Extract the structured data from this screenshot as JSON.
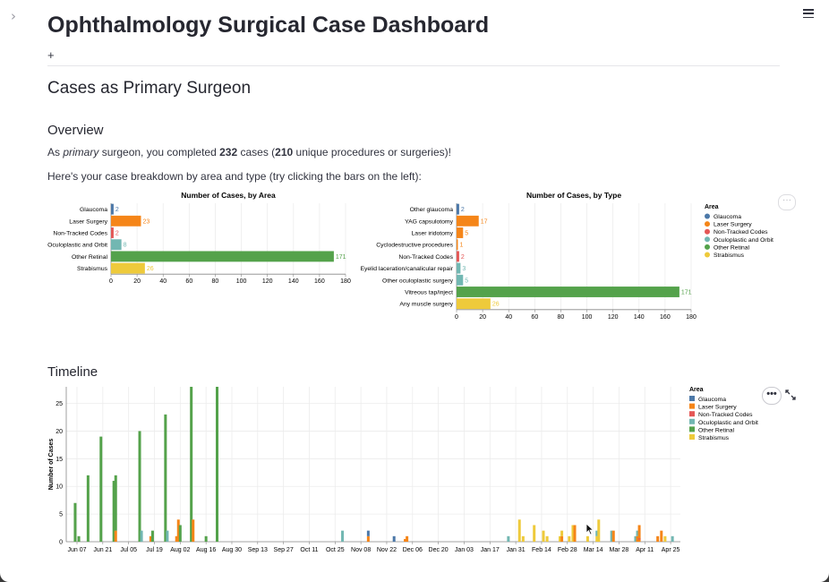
{
  "header": {
    "title": "Ophthalmology Surgical Case Dashboard",
    "add_tab_label": "+",
    "expand_icon": "chevron-right-icon",
    "menu_icon": "hamburger-menu-icon"
  },
  "section": {
    "title": "Cases as Primary Surgeon"
  },
  "overview": {
    "heading": "Overview",
    "summary": {
      "prefix": "As ",
      "emphasis": "primary",
      "mid1": " surgeon, you completed ",
      "cases": "232",
      "mid2": " cases (",
      "unique": "210",
      "suffix": " unique procedures or surgeries)!"
    },
    "hint": "Here's your case breakdown by area and type (try clicking the bars on the left):"
  },
  "colors": {
    "Glaucoma": "#4c78a8",
    "Laser Surgery": "#f58518",
    "Non-Tracked Codes": "#e45756",
    "Oculoplastic and Orbit": "#72b7b2",
    "Other Retinal": "#54a24b",
    "Strabismus": "#eeca3b"
  },
  "timeline": {
    "heading": "Timeline",
    "more_label": "•••",
    "fullscreen_icon": "expand-icon"
  },
  "chart_data": [
    {
      "type": "bar",
      "orientation": "horizontal",
      "title": "Number of Cases, by Area",
      "categories": [
        "Glaucoma",
        "Laser Surgery",
        "Non-Tracked Codes",
        "Oculoplastic and Orbit",
        "Other Retinal",
        "Strabismus"
      ],
      "areas": [
        "Glaucoma",
        "Laser Surgery",
        "Non-Tracked Codes",
        "Oculoplastic and Orbit",
        "Other Retinal",
        "Strabismus"
      ],
      "values": [
        2,
        23,
        2,
        8,
        171,
        26
      ],
      "xticks": [
        0,
        20,
        40,
        60,
        80,
        100,
        120,
        140,
        160,
        180
      ],
      "xlim": [
        0,
        180
      ],
      "grid": true
    },
    {
      "type": "bar",
      "orientation": "horizontal",
      "title": "Number of Cases, by Type",
      "categories": [
        "Other glaucoma",
        "YAG capsulotomy",
        "Laser iridotomy",
        "Cyclodestructive procedures",
        "Non-Tracked Codes",
        "Eyelid laceration/canalicular repair",
        "Other oculoplastic surgery",
        "Vitreous tap/inject",
        "Any muscle surgery"
      ],
      "areas": [
        "Glaucoma",
        "Laser Surgery",
        "Laser Surgery",
        "Laser Surgery",
        "Non-Tracked Codes",
        "Oculoplastic and Orbit",
        "Oculoplastic and Orbit",
        "Other Retinal",
        "Strabismus"
      ],
      "values": [
        2,
        17,
        5,
        1,
        2,
        3,
        5,
        171,
        26
      ],
      "xticks": [
        0,
        20,
        40,
        60,
        80,
        100,
        120,
        140,
        160,
        180
      ],
      "xlim": [
        0,
        180
      ],
      "grid": true,
      "legend": {
        "title": "Area",
        "placement": "right",
        "items": [
          "Glaucoma",
          "Laser Surgery",
          "Non-Tracked Codes",
          "Oculoplastic and Orbit",
          "Other Retinal",
          "Strabismus"
        ]
      }
    },
    {
      "type": "bar",
      "stacked": true,
      "title": "",
      "ylabel": "Number of Cases",
      "ylim": [
        0,
        28
      ],
      "yticks": [
        0,
        5,
        10,
        15,
        20,
        25
      ],
      "x_tick_labels": [
        "Jun 07",
        "Jun 21",
        "Jul 05",
        "Jul 19",
        "Aug 02",
        "Aug 16",
        "Aug 30",
        "Sep 13",
        "Sep 27",
        "Oct 11",
        "Oct 25",
        "Nov 08",
        "Nov 22",
        "Dec 06",
        "Dec 20",
        "Jan 03",
        "Jan 17",
        "Jan 31",
        "Feb 14",
        "Feb 28",
        "Mar 14",
        "Mar 28",
        "Apr 11",
        "Apr 25"
      ],
      "x_tick_dates": [
        "2022-06-07",
        "2022-06-21",
        "2022-07-05",
        "2022-07-19",
        "2022-08-02",
        "2022-08-16",
        "2022-08-30",
        "2022-09-13",
        "2022-09-27",
        "2022-10-11",
        "2022-10-25",
        "2022-11-08",
        "2022-11-22",
        "2022-12-06",
        "2022-12-20",
        "2023-01-03",
        "2023-01-17",
        "2023-01-31",
        "2023-02-14",
        "2023-02-28",
        "2023-03-14",
        "2023-03-28",
        "2023-04-11",
        "2023-04-25"
      ],
      "grid": true,
      "legend": {
        "title": "Area",
        "placement": "right",
        "items": [
          "Glaucoma",
          "Laser Surgery",
          "Non-Tracked Codes",
          "Oculoplastic and Orbit",
          "Other Retinal",
          "Strabismus"
        ]
      },
      "bars": [
        {
          "date": "2022-06-06",
          "area": "Other Retinal",
          "start": 0,
          "end": 7
        },
        {
          "date": "2022-06-08",
          "area": "Other Retinal",
          "start": 0,
          "end": 1
        },
        {
          "date": "2022-06-13",
          "area": "Other Retinal",
          "start": 0,
          "end": 12
        },
        {
          "date": "2022-06-20",
          "area": "Other Retinal",
          "start": 0,
          "end": 19
        },
        {
          "date": "2022-06-27",
          "area": "Other Retinal",
          "start": 0,
          "end": 11
        },
        {
          "date": "2022-06-28",
          "area": "Laser Surgery",
          "start": 0,
          "end": 2
        },
        {
          "date": "2022-06-28",
          "area": "Other Retinal",
          "start": 2,
          "end": 12
        },
        {
          "date": "2022-07-11",
          "area": "Other Retinal",
          "start": 0,
          "end": 20
        },
        {
          "date": "2022-07-12",
          "area": "Oculoplastic and Orbit",
          "start": 0,
          "end": 2
        },
        {
          "date": "2022-07-17",
          "area": "Laser Surgery",
          "start": 0,
          "end": 1
        },
        {
          "date": "2022-07-18",
          "area": "Other Retinal",
          "start": 0,
          "end": 2
        },
        {
          "date": "2022-07-25",
          "area": "Other Retinal",
          "start": 0,
          "end": 23
        },
        {
          "date": "2022-07-26",
          "area": "Oculoplastic and Orbit",
          "start": 0,
          "end": 2
        },
        {
          "date": "2022-07-31",
          "area": "Laser Surgery",
          "start": 0,
          "end": 1
        },
        {
          "date": "2022-08-01",
          "area": "Laser Surgery",
          "start": 0,
          "end": 4
        },
        {
          "date": "2022-08-02",
          "area": "Other Retinal",
          "start": 0,
          "end": 3
        },
        {
          "date": "2022-08-08",
          "area": "Other Retinal",
          "start": 0,
          "end": 28
        },
        {
          "date": "2022-08-09",
          "area": "Laser Surgery",
          "start": 0,
          "end": 4
        },
        {
          "date": "2022-08-16",
          "area": "Other Retinal",
          "start": 0,
          "end": 1
        },
        {
          "date": "2022-08-22",
          "area": "Other Retinal",
          "start": 0,
          "end": 28
        },
        {
          "date": "2022-10-29",
          "area": "Oculoplastic and Orbit",
          "start": 0,
          "end": 2
        },
        {
          "date": "2022-11-12",
          "area": "Laser Surgery",
          "start": 0,
          "end": 1
        },
        {
          "date": "2022-11-12",
          "area": "Glaucoma",
          "start": 1,
          "end": 2
        },
        {
          "date": "2022-11-26",
          "area": "Glaucoma",
          "start": 0,
          "end": 1
        },
        {
          "date": "2022-12-02",
          "area": "Laser Surgery",
          "start": 0,
          "end": 0.5
        },
        {
          "date": "2022-12-03",
          "area": "Laser Surgery",
          "start": 0,
          "end": 1
        },
        {
          "date": "2023-01-27",
          "area": "Oculoplastic and Orbit",
          "start": 0,
          "end": 1
        },
        {
          "date": "2023-02-02",
          "area": "Strabismus",
          "start": 0,
          "end": 4
        },
        {
          "date": "2023-02-04",
          "area": "Strabismus",
          "start": 0,
          "end": 1
        },
        {
          "date": "2023-02-10",
          "area": "Strabismus",
          "start": 0,
          "end": 3
        },
        {
          "date": "2023-02-15",
          "area": "Strabismus",
          "start": 0,
          "end": 2
        },
        {
          "date": "2023-02-17",
          "area": "Strabismus",
          "start": 0,
          "end": 1
        },
        {
          "date": "2023-02-24",
          "area": "Strabismus",
          "start": 0,
          "end": 1
        },
        {
          "date": "2023-02-25",
          "area": "Laser Surgery",
          "start": 0,
          "end": 1
        },
        {
          "date": "2023-02-25",
          "area": "Strabismus",
          "start": 1,
          "end": 2
        },
        {
          "date": "2023-03-01",
          "area": "Strabismus",
          "start": 0,
          "end": 1
        },
        {
          "date": "2023-03-03",
          "area": "Strabismus",
          "start": 0,
          "end": 3
        },
        {
          "date": "2023-03-04",
          "area": "Laser Surgery",
          "start": 0,
          "end": 3
        },
        {
          "date": "2023-03-11",
          "area": "Strabismus",
          "start": 0,
          "end": 1
        },
        {
          "date": "2023-03-16",
          "area": "Strabismus",
          "start": 0,
          "end": 1
        },
        {
          "date": "2023-03-16",
          "area": "Oculoplastic and Orbit",
          "start": 1,
          "end": 2
        },
        {
          "date": "2023-03-17",
          "area": "Strabismus",
          "start": 0,
          "end": 4
        },
        {
          "date": "2023-03-24",
          "area": "Oculoplastic and Orbit",
          "start": 0,
          "end": 2
        },
        {
          "date": "2023-03-25",
          "area": "Laser Surgery",
          "start": 0,
          "end": 2
        },
        {
          "date": "2023-04-06",
          "area": "Oculoplastic and Orbit",
          "start": 0,
          "end": 1
        },
        {
          "date": "2023-04-07",
          "area": "Laser Surgery",
          "start": 0,
          "end": 1
        },
        {
          "date": "2023-04-07",
          "area": "Oculoplastic and Orbit",
          "start": 1,
          "end": 2
        },
        {
          "date": "2023-04-08",
          "area": "Laser Surgery",
          "start": 0,
          "end": 3
        },
        {
          "date": "2023-04-08",
          "area": "Non-Tracked Codes",
          "start": 0.4,
          "end": 0.6
        },
        {
          "date": "2023-04-18",
          "area": "Laser Surgery",
          "start": 0,
          "end": 1
        },
        {
          "date": "2023-04-20",
          "area": "Laser Surgery",
          "start": 0,
          "end": 2
        },
        {
          "date": "2023-04-22",
          "area": "Strabismus",
          "start": 0,
          "end": 1
        },
        {
          "date": "2023-04-26",
          "area": "Oculoplastic and Orbit",
          "start": 0,
          "end": 1
        }
      ]
    }
  ]
}
